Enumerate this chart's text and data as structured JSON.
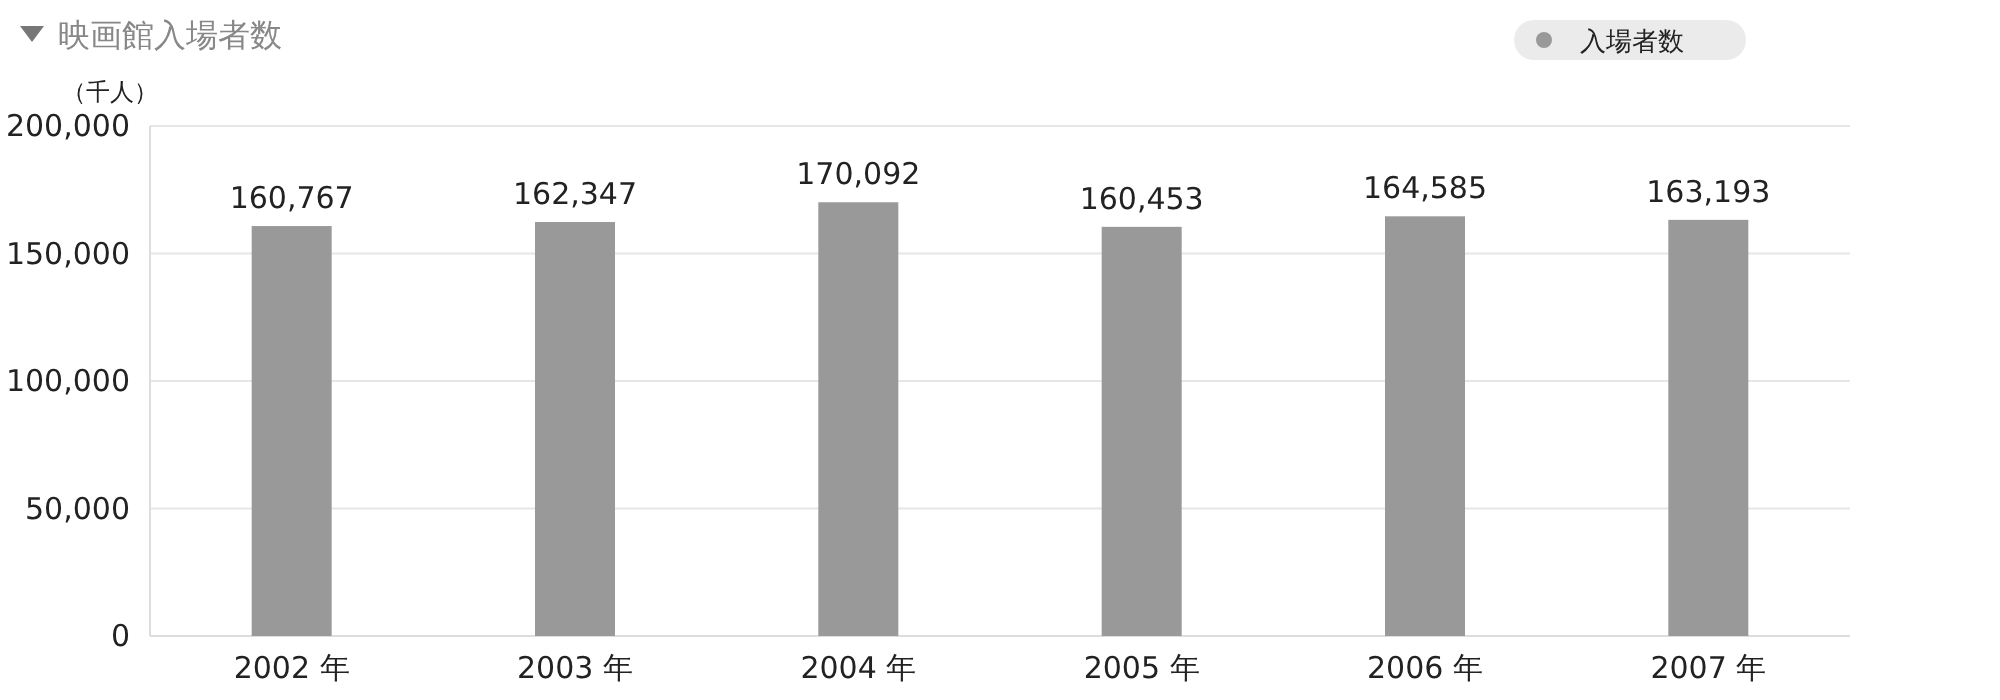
{
  "chart_data": {
    "type": "bar",
    "title": "映画館入場者数",
    "ylabel": "（千人）",
    "categories": [
      "2002 年",
      "2003 年",
      "2004 年",
      "2005 年",
      "2006 年",
      "2007 年"
    ],
    "series": [
      {
        "name": "入場者数",
        "color": "#999999",
        "values": [
          160767,
          162347,
          170092,
          160453,
          164585,
          163193
        ],
        "value_labels": [
          "160,767",
          "162,347",
          "170,092",
          "160,453",
          "164,585",
          "163,193"
        ]
      }
    ],
    "ylim": [
      0,
      200000
    ],
    "yticks": [
      {
        "value": 0,
        "label": "0"
      },
      {
        "value": 50000,
        "label": "50,000"
      },
      {
        "value": 100000,
        "label": "100,000"
      },
      {
        "value": 150000,
        "label": "150,000"
      },
      {
        "value": 200000,
        "label": "200,000"
      }
    ],
    "grid": "y",
    "legend": "top right"
  }
}
